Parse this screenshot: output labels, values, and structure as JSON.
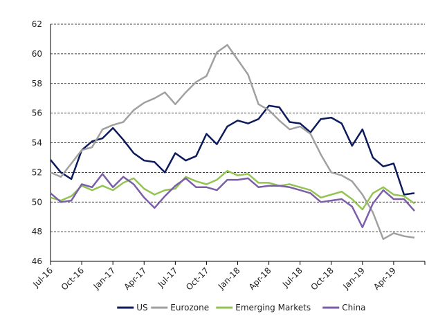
{
  "chart_data": {
    "type": "line",
    "categories": [
      "Jul-16",
      null,
      null,
      "Oct-16",
      null,
      null,
      "Jan-17",
      null,
      null,
      "Apr-17",
      null,
      null,
      "Jul-17",
      null,
      null,
      "Oct-17",
      null,
      null,
      "Jan-18",
      null,
      null,
      "Apr-18",
      null,
      null,
      "Jul-18",
      null,
      null,
      "Oct-18",
      null,
      null,
      "Jan-19",
      null,
      null,
      "Apr-19",
      null,
      null
    ],
    "series": [
      {
        "name": "US",
        "color": "#0d1a5c",
        "values": [
          52.85,
          52.0,
          51.55,
          53.5,
          54.1,
          54.3,
          55.0,
          54.2,
          53.3,
          52.8,
          52.7,
          52.0,
          53.3,
          52.8,
          53.1,
          54.6,
          53.9,
          55.1,
          55.5,
          55.3,
          55.6,
          56.5,
          56.4,
          55.4,
          55.3,
          54.7,
          55.6,
          55.7,
          55.3,
          53.8,
          54.9,
          53.0,
          52.4,
          52.6,
          50.5,
          50.6
        ]
      },
      {
        "name": "Eurozone",
        "color": "#a0a0a0",
        "values": [
          52.0,
          51.7,
          52.6,
          53.5,
          53.7,
          54.9,
          55.2,
          55.4,
          56.2,
          56.7,
          57.0,
          57.4,
          56.6,
          57.4,
          58.1,
          58.5,
          60.1,
          60.6,
          59.6,
          58.6,
          56.6,
          56.2,
          55.5,
          54.9,
          55.1,
          54.6,
          53.2,
          52.0,
          51.8,
          51.4,
          50.5,
          49.3,
          47.5,
          47.9,
          47.7,
          47.6
        ]
      },
      {
        "name": "Emerging Markets",
        "color": "#92c353",
        "values": [
          50.3,
          50.1,
          50.4,
          51.1,
          50.8,
          51.1,
          50.8,
          51.3,
          51.6,
          50.9,
          50.5,
          50.8,
          50.9,
          51.7,
          51.4,
          51.2,
          51.5,
          52.1,
          51.8,
          51.9,
          51.3,
          51.3,
          51.1,
          51.2,
          51.0,
          50.8,
          50.3,
          50.5,
          50.7,
          50.2,
          49.5,
          50.6,
          51.0,
          50.5,
          50.4,
          49.9
        ]
      },
      {
        "name": "China",
        "color": "#7b5ea7",
        "values": [
          50.6,
          50.0,
          50.1,
          51.2,
          51.0,
          51.9,
          51.0,
          51.7,
          51.2,
          50.3,
          49.6,
          50.4,
          51.1,
          51.6,
          51.0,
          51.0,
          50.8,
          51.5,
          51.5,
          51.6,
          51.0,
          51.1,
          51.1,
          51.0,
          50.8,
          50.6,
          50.0,
          50.1,
          50.2,
          49.7,
          48.3,
          49.9,
          50.8,
          50.2,
          50.2,
          49.4
        ]
      }
    ],
    "ylim": [
      46,
      62
    ],
    "yticks": [
      46,
      48,
      50,
      52,
      54,
      56,
      58,
      60,
      62
    ],
    "grid": true,
    "legend": "bottom"
  }
}
